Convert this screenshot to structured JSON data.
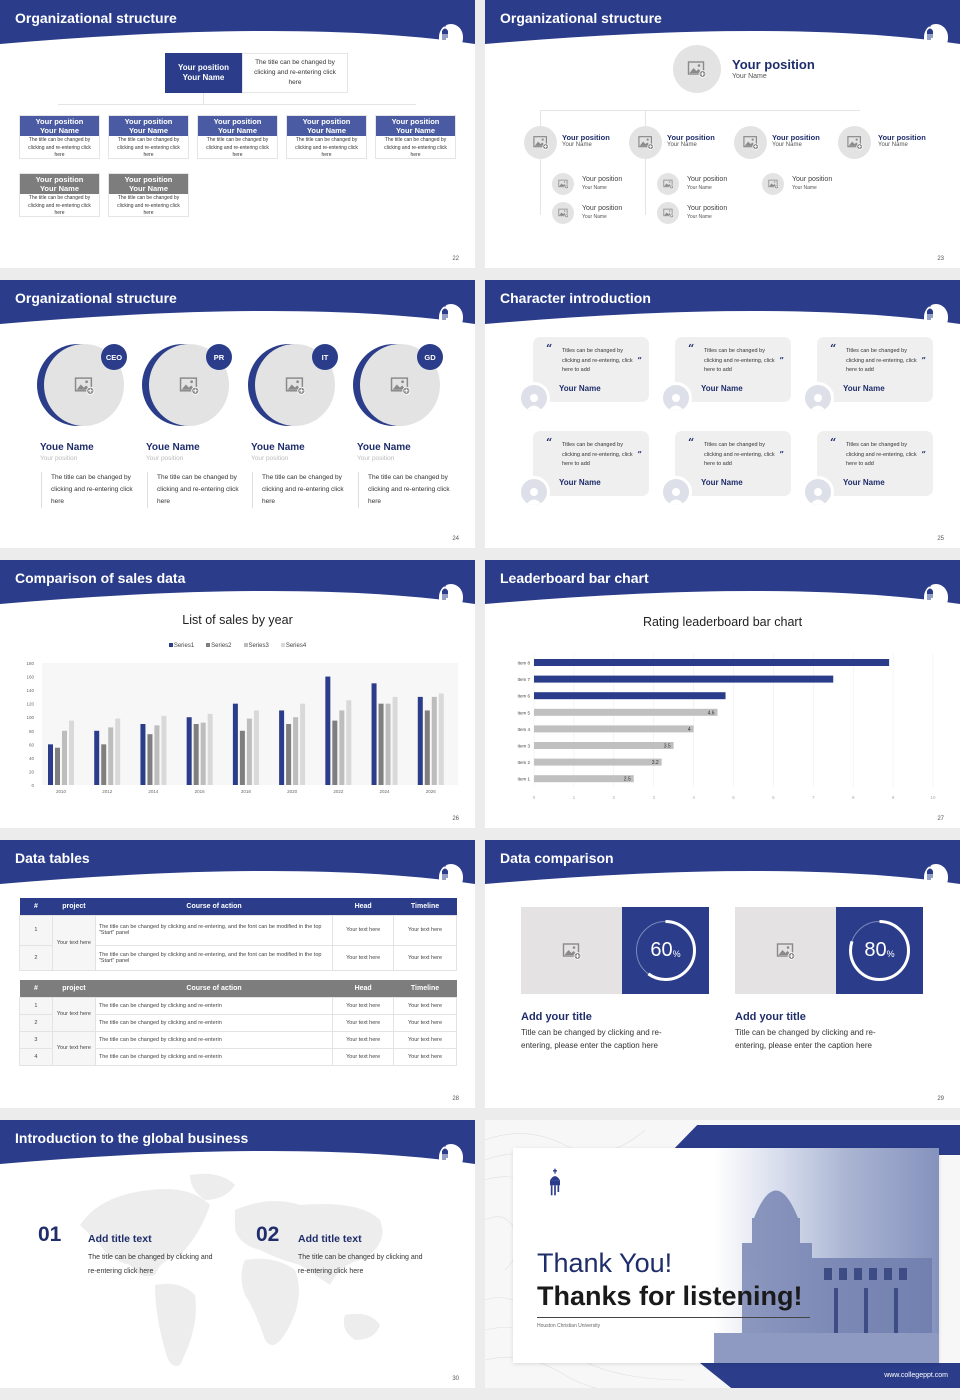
{
  "theme": {
    "primary": "#2b3d8a",
    "dark_text": "#1f2d6b",
    "gray": "#7d7d7d",
    "light_gray": "#e3e3e3"
  },
  "slides": {
    "s22": {
      "title": "Organizational structure",
      "page": "22",
      "top": {
        "position": "Your position",
        "name": "Your Name",
        "desc": "The title can be changed by clicking and re-entering click here"
      },
      "row1": [
        {
          "position": "Your position",
          "name": "Your Name",
          "desc": "The title can be changed by clicking and re-entering click here"
        },
        {
          "position": "Your position",
          "name": "Your Name",
          "desc": "The title can be changed by clicking and re-entering click here"
        },
        {
          "position": "Your position",
          "name": "Your Name",
          "desc": "The title can be changed by clicking and re-entering click here"
        },
        {
          "position": "Your position",
          "name": "Your Name",
          "desc": "The title can be changed by clicking and re-entering click here"
        },
        {
          "position": "Your position",
          "name": "Your Name",
          "desc": "The title can be changed by clicking and re-entering click here"
        }
      ],
      "row2": [
        {
          "position": "Your position",
          "name": "Your Name",
          "desc": "The title can be changed by clicking and re-entering click here"
        },
        {
          "position": "Your position",
          "name": "Your Name",
          "desc": "The title can be changed by clicking and re-entering click here"
        }
      ]
    },
    "s23": {
      "title": "Organizational structure",
      "page": "23",
      "top": {
        "position": "Your position",
        "name": "Your Name"
      },
      "level1": [
        {
          "position": "Your position",
          "name": "Your Name"
        },
        {
          "position": "Your position",
          "name": "Your Name"
        },
        {
          "position": "Your position",
          "name": "Your Name"
        },
        {
          "position": "Your position",
          "name": "Your Name"
        }
      ],
      "level2": [
        {
          "position": "Your position",
          "name": "Your Name"
        },
        {
          "position": "Your position",
          "name": "Your Name"
        },
        {
          "position": "Your position",
          "name": "Your Name"
        },
        {
          "position": "Your position",
          "name": "Your Name"
        },
        {
          "position": "Your position",
          "name": "Your Name"
        }
      ]
    },
    "s24": {
      "title": "Organizational structure",
      "page": "24",
      "members": [
        {
          "badge": "CEO",
          "name": "Youe Name",
          "position": "Your position",
          "desc": "The title can be changed by clicking and re-entering click here"
        },
        {
          "badge": "PR",
          "name": "Youe Name",
          "position": "Your position",
          "desc": "The title can be changed by clicking and re-entering click here"
        },
        {
          "badge": "IT",
          "name": "Youe Name",
          "position": "Your position",
          "desc": "The title can be changed by clicking and re-entering click here"
        },
        {
          "badge": "GD",
          "name": "Youe Name",
          "position": "Your position",
          "desc": "The title can be changed by clicking and re-entering click here"
        }
      ]
    },
    "s25": {
      "title": "Character introduction",
      "page": "25",
      "cards": [
        {
          "text": "Titles can be changed by clicking and re-entering, click here to add",
          "name": "Your Name"
        },
        {
          "text": "Titles can be changed by clicking and re-entering, click here to add",
          "name": "Your Name"
        },
        {
          "text": "Titles can be changed by clicking and re-entering, click here to add",
          "name": "Your Name"
        },
        {
          "text": "Titles can be changed by clicking and re-entering, click here to add",
          "name": "Your Name"
        },
        {
          "text": "Titles can be changed by clicking and re-entering, click here to add",
          "name": "Your Name"
        },
        {
          "text": "Titles can be changed by clicking and re-entering, click here to add",
          "name": "Your Name"
        }
      ],
      "quote_open": "“",
      "quote_close": "”"
    },
    "s26": {
      "title": "Comparison of sales data",
      "page": "26"
    },
    "s27": {
      "title": "Leaderboard bar chart",
      "page": "27"
    },
    "s28": {
      "title": "Data tables",
      "page": "28",
      "headers": [
        "#",
        "project",
        "Course of action",
        "Head",
        "Timeline"
      ],
      "table1": {
        "project": "Your text here",
        "rows": [
          {
            "num": "1",
            "action": "The title can be changed by clicking and re-entering, and the font can be modified in the top \"Start\" panel",
            "head": "Your text here",
            "timeline": "Your text here"
          },
          {
            "num": "2",
            "action": "The title can be changed by clicking and re-entering, and the font can be modified in the top \"Start\" panel",
            "head": "Your text here",
            "timeline": "Your text here"
          }
        ]
      },
      "table2": {
        "projects": [
          "Your text here",
          "Your text here"
        ],
        "rows": [
          {
            "num": "1",
            "action": "The title can be changed by clicking and re-enterin",
            "head": "Your text here",
            "timeline": "Your text here"
          },
          {
            "num": "2",
            "action": "The title can be changed by clicking and re-enterin",
            "head": "Your text here",
            "timeline": "Your text here"
          },
          {
            "num": "3",
            "action": "The title can be changed by clicking and re-enterin",
            "head": "Your text here",
            "timeline": "Your text here"
          },
          {
            "num": "4",
            "action": "The title can be changed by clicking and re-enterin",
            "head": "Your text here",
            "timeline": "Your text here"
          }
        ]
      }
    },
    "s29": {
      "title": "Data comparison",
      "page": "29",
      "items": [
        {
          "value": "60",
          "unit": "%",
          "title": "Add your title",
          "desc": "Title can be changed by clicking and re-entering, please enter the caption here"
        },
        {
          "value": "80",
          "unit": "%",
          "title": "Add your title",
          "desc": "Title can be changed by clicking and re-entering, please enter the caption here"
        }
      ]
    },
    "s30": {
      "title": "Introduction to the global business",
      "page": "30",
      "items": [
        {
          "num": "01",
          "title": "Add title text",
          "desc": "The title can be changed by clicking and re-entering click here"
        },
        {
          "num": "02",
          "title": "Add title text",
          "desc": "The title can be changed by clicking and re-entering click here"
        }
      ]
    },
    "s31": {
      "thanks": "Thank You!",
      "listening": "Thanks for listening!",
      "university": "Houston Christian University",
      "url": "www.collegeppt.com"
    }
  },
  "chart_data": [
    {
      "type": "bar",
      "title": "List of sales by year",
      "categories": [
        "2010",
        "2012",
        "2014",
        "2016",
        "2018",
        "2020",
        "2022",
        "2024",
        "2026"
      ],
      "series": [
        {
          "name": "Series1",
          "color": "#2b3d8a",
          "values": [
            60,
            80,
            90,
            100,
            120,
            110,
            160,
            150,
            130
          ]
        },
        {
          "name": "Series2",
          "color": "#7f7f7f",
          "values": [
            55,
            60,
            75,
            90,
            80,
            90,
            95,
            120,
            110
          ]
        },
        {
          "name": "Series3",
          "color": "#bdbdbd",
          "values": [
            80,
            85,
            88,
            92,
            98,
            100,
            110,
            120,
            130
          ]
        },
        {
          "name": "Series4",
          "color": "#d9d9d9",
          "values": [
            95,
            98,
            102,
            105,
            110,
            120,
            125,
            130,
            135
          ]
        }
      ],
      "xlabel": "",
      "ylabel": "",
      "ylim": [
        0,
        180
      ],
      "yticks": [
        "0",
        "20",
        "40",
        "60",
        "80",
        "100",
        "120",
        "140",
        "160",
        "180"
      ],
      "legend_position": "top",
      "grid": false
    },
    {
      "type": "bar",
      "orientation": "horizontal",
      "title": "Rating leaderboard bar chart",
      "categories": [
        "Item 8",
        "Item 7",
        "Item 6",
        "Item 5",
        "Item 4",
        "Item 3",
        "Item 2",
        "Item 1"
      ],
      "values": [
        8.9,
        7.5,
        4.8,
        4.6,
        4,
        3.5,
        3.2,
        2.5
      ],
      "data_labels": [
        "",
        "",
        "",
        "4.6",
        "4",
        "3.5",
        "3.2",
        "2.5"
      ],
      "colors": [
        "#2b3d8a",
        "#2b3d8a",
        "#2b3d8a",
        "#c0c0c0",
        "#c0c0c0",
        "#c0c0c0",
        "#c0c0c0",
        "#c0c0c0"
      ],
      "xlim": [
        0,
        10
      ],
      "xticks": [
        "0",
        "1",
        "2",
        "3",
        "4",
        "5",
        "6",
        "7",
        "8",
        "9",
        "10"
      ],
      "grid": true
    }
  ]
}
